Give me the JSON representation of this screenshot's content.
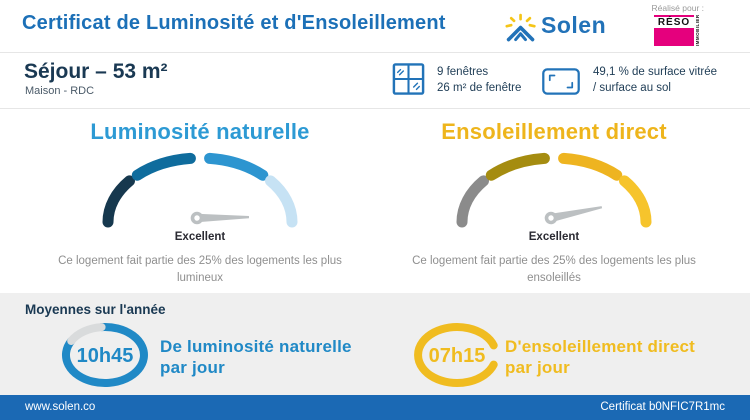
{
  "header": {
    "title": "Certificat de Luminosité et d'Ensoleillement",
    "brand_name": "Solen",
    "realized_for": "Réalisé pour :",
    "partner": {
      "name": "RÉSO",
      "sub": "IMMOBILIER",
      "color": "#e5007d"
    }
  },
  "room": {
    "title": "Séjour – 53 m²",
    "subtitle": "Maison - RDC",
    "windows_line1": "9 fenêtres",
    "windows_line2": "26 m² de fenêtre",
    "glazing_line1": "49,1 % de surface vitrée",
    "glazing_line2": "/ surface au sol",
    "icon_color": "#2273b8"
  },
  "gauges": [
    {
      "title": "Luminosité naturelle",
      "title_color": "#2d9ad4",
      "rating": "Excellent",
      "description": "Ce logement fait partie des 25% des logements les plus lumineux",
      "segment_colors": [
        "#16384e",
        "#0f6c9d",
        "#2d95d0",
        "#c6e2f4"
      ],
      "needle_angle_deg": -1
    },
    {
      "title": "Ensoleillement direct",
      "title_color": "#eeb51c",
      "rating": "Excellent",
      "description": "Ce logement fait partie des 25% des logements les plus ensoleillés",
      "segment_colors": [
        "#8b8b8b",
        "#a58c10",
        "#eeb420",
        "#f6c42c"
      ],
      "needle_angle_deg": -12
    }
  ],
  "averages": {
    "section_title": "Moyennes sur l'année",
    "items": [
      {
        "value": "10h45",
        "label_line1": "De luminosité naturelle",
        "label_line2": "par jour",
        "ring_color": "#2089c6",
        "ring_rest_color": "#d9dbdc"
      },
      {
        "value": "07h15",
        "label_line1": "D'ensoleillement direct",
        "label_line2": "par jour",
        "ring_color": "#f0bc20"
      }
    ]
  },
  "footer": {
    "website": "www.solen.co",
    "certificate_id": "Certificat b0NFIC7R1mc",
    "bar_color": "#1b69b4"
  }
}
